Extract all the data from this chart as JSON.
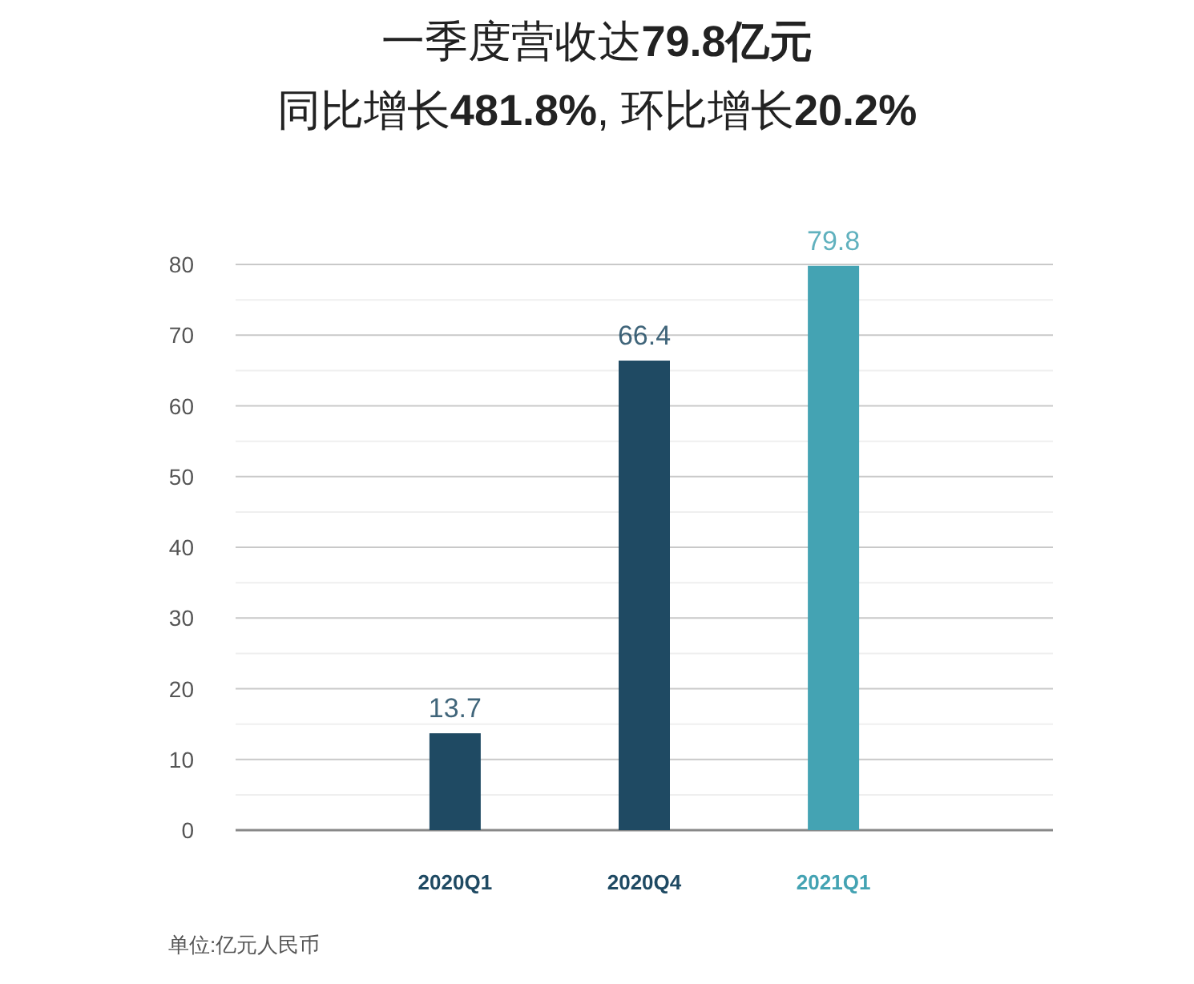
{
  "chart_data": {
    "type": "bar",
    "title": "一季度营收达79.8亿元",
    "subtitle": "同比增长481.8%, 环比增长20.2%",
    "categories": [
      "2020Q1",
      "2020Q4",
      "2021Q1"
    ],
    "values": [
      13.7,
      66.4,
      79.8
    ],
    "colors": [
      "#1f4a63",
      "#1f4a63",
      "#44a3b3"
    ],
    "ylim": [
      0,
      80
    ],
    "yticks": [
      0,
      {
        "value": 5,
        "label": null
      },
      10,
      {
        "value": 15,
        "label": null
      },
      20,
      {
        "value": 25,
        "label": null
      },
      30,
      {
        "value": 35,
        "label": null
      },
      40,
      {
        "value": 45,
        "label": null
      },
      50,
      {
        "value": 55,
        "label": null
      },
      60,
      {
        "value": 65,
        "label": null
      },
      70,
      {
        "value": 75,
        "label": null
      },
      80
    ],
    "grid": "y",
    "data_labels": true,
    "annotations": [
      "单位:亿元人民币"
    ]
  }
}
